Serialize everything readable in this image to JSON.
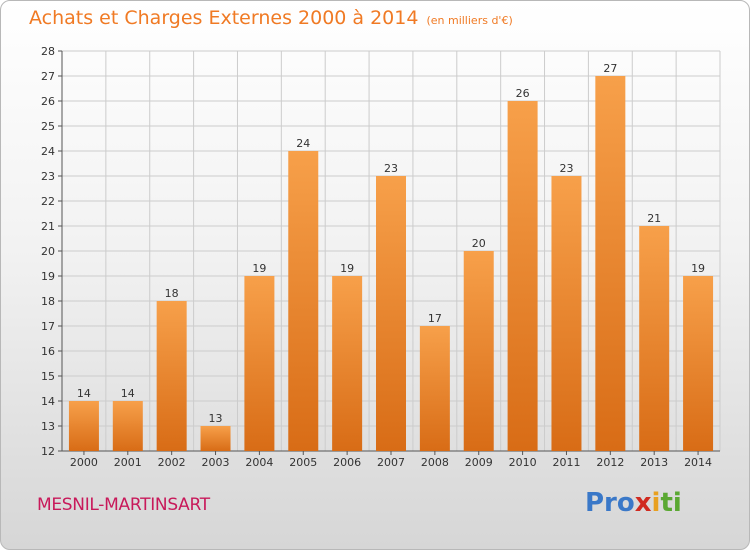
{
  "header": {
    "title": "Achats et Charges Externes 2000 à 2014",
    "subtitle": "(en milliers d'€)"
  },
  "footer": {
    "commune": "MESNIL-MARTINSART",
    "logo": [
      "Pro",
      "x",
      "i",
      "ti"
    ]
  },
  "colors": {
    "bar_light": "#f7a04a",
    "bar_dark": "#d86c16",
    "title": "#f07a24",
    "commune": "#c8195a",
    "grid": "#cccccc"
  },
  "chart_data": {
    "type": "bar",
    "title": "Achats et Charges Externes 2000 à 2014",
    "subtitle": "(en milliers d'€)",
    "xlabel": "",
    "ylabel": "",
    "categories": [
      "2000",
      "2001",
      "2002",
      "2003",
      "2004",
      "2005",
      "2006",
      "2007",
      "2008",
      "2009",
      "2010",
      "2011",
      "2012",
      "2013",
      "2014"
    ],
    "values": [
      14,
      14,
      18,
      13,
      19,
      24,
      19,
      23,
      17,
      20,
      26,
      23,
      27,
      21,
      19
    ],
    "ylim": [
      12,
      28
    ],
    "yticks": [
      12,
      13,
      14,
      15,
      16,
      17,
      18,
      19,
      20,
      21,
      22,
      23,
      24,
      25,
      26,
      27,
      28
    ],
    "grid": true,
    "legend": "none"
  }
}
